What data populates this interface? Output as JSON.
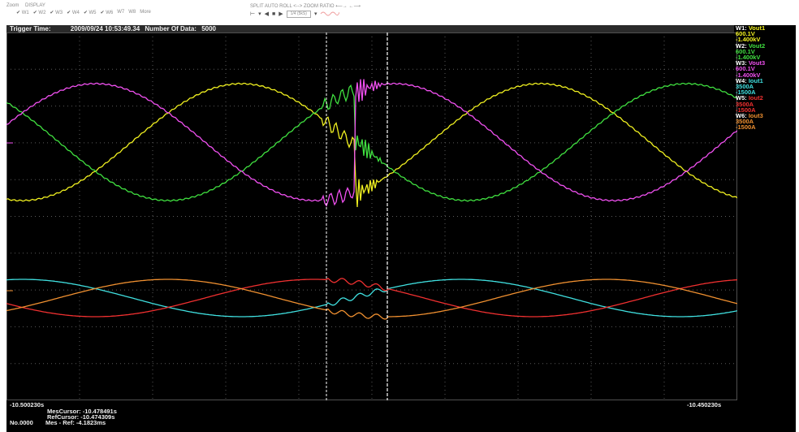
{
  "toolbar": {
    "zoom_label": "Zoom",
    "display_label": "DISPLAY",
    "channels": [
      "W1",
      "W2",
      "W3",
      "W4",
      "W5",
      "W6",
      "W7",
      "W8"
    ],
    "more_label": "More",
    "split_label": "SPLIT",
    "auto_label": "AUTO",
    "roll_label": "ROLL",
    "zoom_ratio_label": "ZOOM RATIO",
    "zoom_ratio_value": "1/4 (5kS)"
  },
  "header": {
    "trigger_label": "Trigger Time:",
    "trigger_time": "2009/09/24  10:53:49.34",
    "data_label": "Number Of Data:",
    "data_count": "5000"
  },
  "legend": [
    {
      "name": "W1:",
      "signal": "Vout1",
      "max": "600.1V",
      "min": "-1.400kV",
      "color": "#f0f020"
    },
    {
      "name": "W2:",
      "signal": "Vout2",
      "max": "600.1V",
      "min": "-1.400kV",
      "color": "#40e040"
    },
    {
      "name": "W3:",
      "signal": "Vout3",
      "max": "600.1V",
      "min": "-1.400kV",
      "color": "#f050f0"
    },
    {
      "name": "W4:",
      "signal": "Iout1",
      "max": "3500A",
      "min": "-1500A",
      "color": "#40e0e0"
    },
    {
      "name": "W5:",
      "signal": "Iout2",
      "max": "3500A",
      "min": "-1500A",
      "color": "#f03030"
    },
    {
      "name": "W6:",
      "signal": "Iout3",
      "max": "3500A",
      "min": "-1500A",
      "color": "#f09030"
    }
  ],
  "footer": {
    "time_left": "-10.500230s",
    "time_right": "-10.450230s",
    "mes_cursor": "MesCursor: -10.478491s",
    "ref_cursor": "RefCursor: -10.474309s",
    "record_no": "No.0000",
    "mes_ref": "Mes - Ref:   -4.1823ms"
  }
}
